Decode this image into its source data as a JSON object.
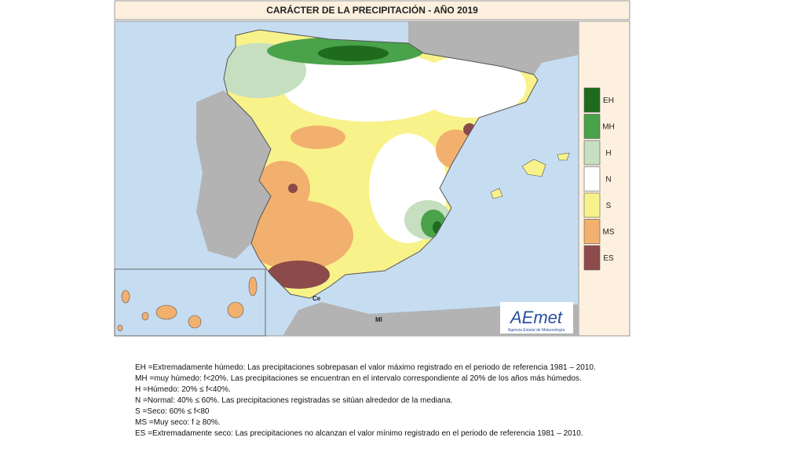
{
  "title": "CARÁCTER DE LA PRECIPITACIÓN - AÑO  2019",
  "legend": [
    {
      "code": "EH",
      "color": "#1e6b1e"
    },
    {
      "code": "MH",
      "color": "#4aa24a"
    },
    {
      "code": "H",
      "color": "#c5dfc0"
    },
    {
      "code": "N",
      "color": "#ffffff"
    },
    {
      "code": "S",
      "color": "#f8f28a"
    },
    {
      "code": "MS",
      "color": "#f2b06e"
    },
    {
      "code": "ES",
      "color": "#8c4a4a"
    }
  ],
  "map_labels": [
    "Ce",
    "Ml"
  ],
  "logo": {
    "name": "AEmet",
    "subtitle": "Agencia Estatal de Meteorología"
  },
  "definitions": [
    "EH   =Extremadamente húmedo: Las precipitaciones sobrepasan el valor máximo registrado en el periodo de referencia 1981 – 2010.",
    "MH  =muy húmedo: f<20%. Las precipitaciones se encuentran en el intervalo correspondiente al 20% de los años más  húmedos.",
    "H      =Húmedo: 20% ≤ f<40%.",
    "N      =Normal: 40% ≤ 60%. Las precipitaciones registradas se sitúan alrededor de la mediana.",
    "S      =Seco: 60%  ≤ f<80",
    "MS   =Muy seco: f ≥ 80%.",
    "ES    =Extremadamente  seco: Las precipitaciones no alcanzan el valor mínimo registrado en el periodo de referencia 1981 – 2010."
  ]
}
